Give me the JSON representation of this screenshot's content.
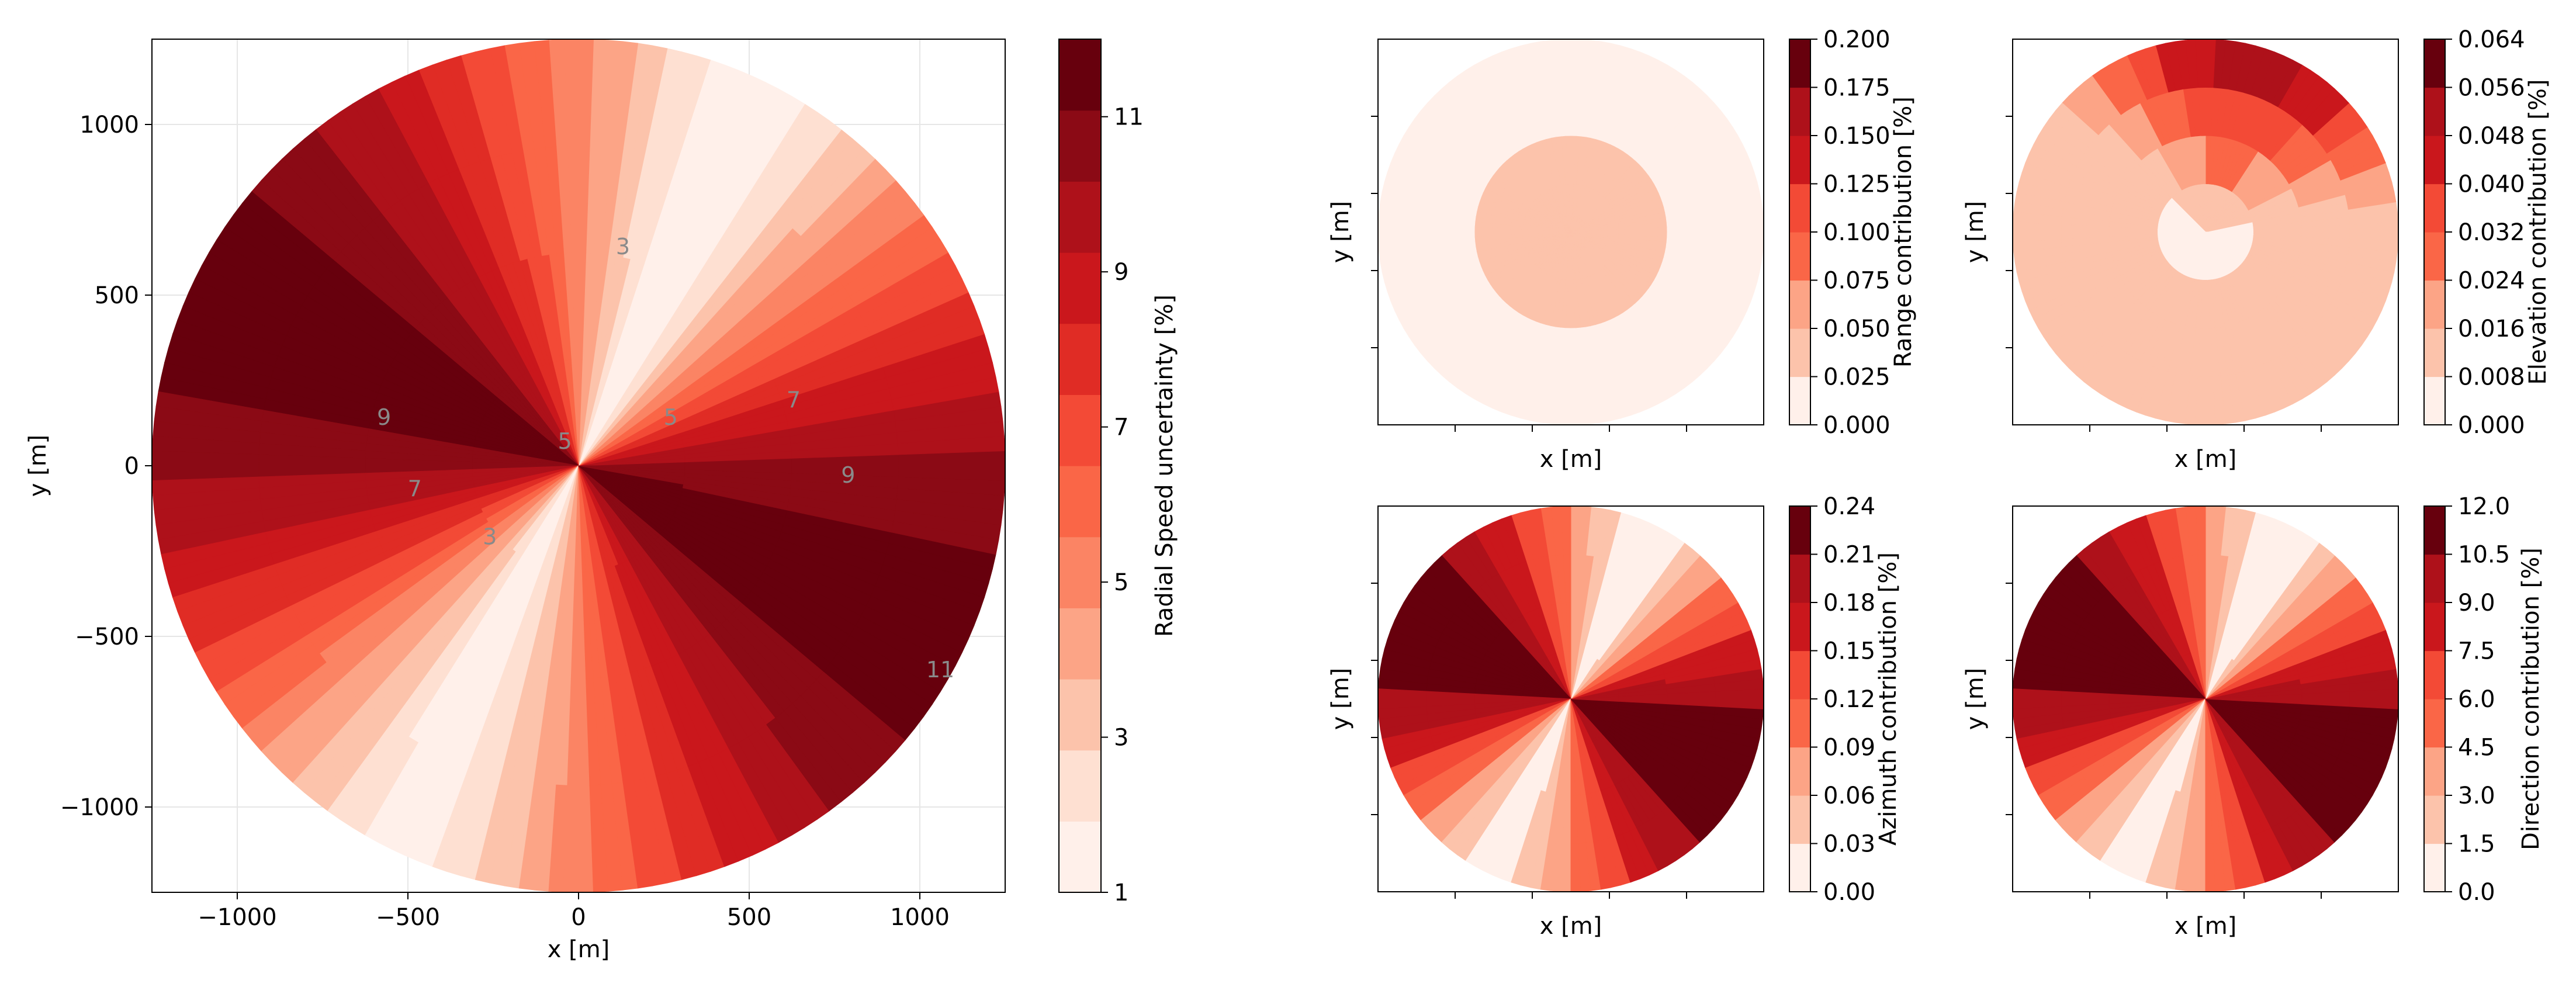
{
  "colors": {
    "ramp": [
      "#fff0ea",
      "#fee0d2",
      "#fcc3ab",
      "#fca486",
      "#fb8464",
      "#fa6647",
      "#f34a36",
      "#e02c25",
      "#ca171c",
      "#ae111a",
      "#8b0a15",
      "#67000d"
    ],
    "edge": "#000000",
    "grid": "#e6e6e6",
    "contour_line": "#b0a9a6"
  },
  "chart_data": [
    {
      "id": "main",
      "type": "heatmap",
      "subtype": "filled-contour",
      "title": "",
      "xlabel": "x [m]",
      "ylabel": "y [m]",
      "xlim": [
        -1250,
        1250
      ],
      "ylim": [
        -1250,
        1250
      ],
      "xticks": [
        -1000,
        -500,
        0,
        500,
        1000
      ],
      "yticks": [
        -1000,
        -500,
        0,
        500,
        1000
      ],
      "xticklabels": [
        "−1000",
        "−500",
        "0",
        "500",
        "1000"
      ],
      "yticklabels": [
        "−1000",
        "−500",
        "0",
        "500",
        "1000"
      ],
      "grid": true,
      "field_radius": 1250,
      "colorbar": {
        "label": "Radial Speed uncertainty [%]",
        "min": 1,
        "max": 12,
        "levels": 12,
        "ticks": [
          1,
          3,
          5,
          7,
          9,
          11
        ],
        "ticklabels": [
          "1",
          "3",
          "5",
          "7",
          "9",
          "11"
        ]
      },
      "contour_labels": [
        {
          "text": "3",
          "x": 130,
          "y": 620
        },
        {
          "text": "9",
          "x": -570,
          "y": 120
        },
        {
          "text": "5",
          "x": -40,
          "y": 50
        },
        {
          "text": "5",
          "x": 270,
          "y": 120
        },
        {
          "text": "7",
          "x": 630,
          "y": 170
        },
        {
          "text": "7",
          "x": -480,
          "y": -90
        },
        {
          "text": "9",
          "x": 790,
          "y": -50
        },
        {
          "text": "3",
          "x": -260,
          "y": -230
        },
        {
          "text": "11",
          "x": 1060,
          "y": -620
        }
      ]
    },
    {
      "id": "range",
      "type": "heatmap",
      "subtype": "filled-contour",
      "xlabel": "x [m]",
      "ylabel": "y [m]",
      "colorbar": {
        "label": "Range contribution [%]",
        "min": 0.0,
        "max": 0.2,
        "levels": 8,
        "ticks": [
          0.0,
          0.025,
          0.05,
          0.075,
          0.1,
          0.125,
          0.15,
          0.175,
          0.2
        ],
        "ticklabels": [
          "0.000",
          "0.025",
          "0.050",
          "0.075",
          "0.100",
          "0.125",
          "0.150",
          "0.175",
          "0.200"
        ]
      }
    },
    {
      "id": "elevation",
      "type": "heatmap",
      "subtype": "filled-contour",
      "xlabel": "x [m]",
      "ylabel": "y [m]",
      "colorbar": {
        "label": "Elevation contribution [%]",
        "min": 0.0,
        "max": 0.064,
        "levels": 8,
        "ticks": [
          0.0,
          0.008,
          0.016,
          0.024,
          0.032,
          0.04,
          0.048,
          0.056,
          0.064
        ],
        "ticklabels": [
          "0.000",
          "0.008",
          "0.016",
          "0.024",
          "0.032",
          "0.040",
          "0.048",
          "0.056",
          "0.064"
        ]
      }
    },
    {
      "id": "azimuth",
      "type": "heatmap",
      "subtype": "filled-contour",
      "xlabel": "x [m]",
      "ylabel": "y [m]",
      "colorbar": {
        "label": "Azimuth contribution [%]",
        "min": 0.0,
        "max": 0.24,
        "levels": 8,
        "ticks": [
          0.0,
          0.03,
          0.06,
          0.09,
          0.12,
          0.15,
          0.18,
          0.21,
          0.24
        ],
        "ticklabels": [
          "0.00",
          "0.03",
          "0.06",
          "0.09",
          "0.12",
          "0.15",
          "0.18",
          "0.21",
          "0.24"
        ]
      }
    },
    {
      "id": "direction",
      "type": "heatmap",
      "subtype": "filled-contour",
      "xlabel": "x [m]",
      "ylabel": "y [m]",
      "colorbar": {
        "label": "Direction contribution [%]",
        "min": 0.0,
        "max": 12.0,
        "levels": 8,
        "ticks": [
          0.0,
          1.5,
          3.0,
          4.5,
          6.0,
          7.5,
          9.0,
          10.5,
          12.0
        ],
        "ticklabels": [
          "0.0",
          "1.5",
          "3.0",
          "4.5",
          "6.0",
          "7.5",
          "9.0",
          "10.5",
          "12.0"
        ]
      }
    }
  ]
}
